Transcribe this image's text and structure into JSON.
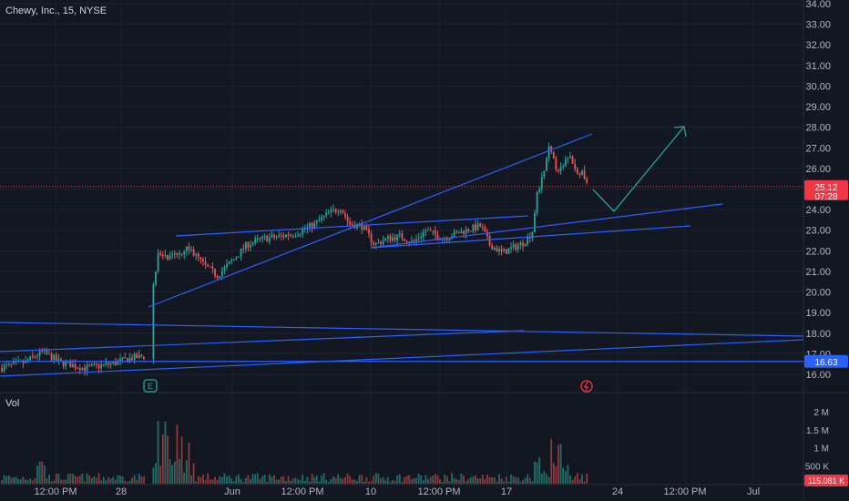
{
  "header": {
    "symbol_title": "Chewy, Inc., 15, NYSE"
  },
  "volume_pane": {
    "label": "Vol"
  },
  "colors": {
    "background": "#131722",
    "grid": "#1e222d",
    "axis_text": "#b2b5be",
    "candle_up": "#26a69a",
    "candle_down": "#ef5350",
    "trendline": "#2962ff",
    "projection_arrow": "#26a69a",
    "price_badge": "#f23645",
    "level_badge": "#2962ff",
    "volume_up": "#1f6e67",
    "volume_down": "#8e3a3a"
  },
  "price_axis": {
    "ticks": [
      "34.00",
      "33.00",
      "32.00",
      "31.00",
      "30.00",
      "29.00",
      "28.00",
      "27.00",
      "26.00",
      "25.00",
      "24.00",
      "23.00",
      "22.00",
      "21.00",
      "20.00",
      "19.00",
      "18.00",
      "17.00",
      "16.00"
    ],
    "current_price": "25.12",
    "countdown": "07:28",
    "level_label": "16.63"
  },
  "volume_axis": {
    "ticks": [
      "2 M",
      "1.5 M",
      "1 M",
      "500 K"
    ],
    "current_volume": "115.081 K"
  },
  "time_axis": {
    "labels": [
      "12:00 PM",
      "28",
      "Jun",
      "12:00 PM",
      "10",
      "12:00 PM",
      "17",
      "24",
      "12:00 PM",
      "Jul"
    ]
  },
  "markers": {
    "earnings": "E",
    "dividend_icon": "lightning-icon"
  },
  "chart_data": {
    "type": "candlestick",
    "symbol": "Chewy, Inc.",
    "interval": "15",
    "exchange": "NYSE",
    "ylim": [
      15.5,
      34.2
    ],
    "price_path": [
      [
        0,
        16.3
      ],
      [
        0.03,
        16.6
      ],
      [
        0.05,
        17.1
      ],
      [
        0.07,
        16.6
      ],
      [
        0.1,
        16.3
      ],
      [
        0.13,
        16.5
      ],
      [
        0.155,
        16.8
      ],
      [
        0.175,
        16.9
      ],
      [
        0.177,
        19.4
      ],
      [
        0.185,
        21.8
      ],
      [
        0.2,
        21.6
      ],
      [
        0.22,
        22.2
      ],
      [
        0.24,
        21.3
      ],
      [
        0.255,
        20.8
      ],
      [
        0.275,
        21.6
      ],
      [
        0.29,
        22.3
      ],
      [
        0.31,
        22.6
      ],
      [
        0.33,
        22.7
      ],
      [
        0.35,
        22.9
      ],
      [
        0.37,
        23.3
      ],
      [
        0.385,
        23.8
      ],
      [
        0.4,
        24.1
      ],
      [
        0.41,
        23.3
      ],
      [
        0.425,
        23.2
      ],
      [
        0.44,
        22.3
      ],
      [
        0.455,
        22.6
      ],
      [
        0.47,
        22.7
      ],
      [
        0.485,
        22.4
      ],
      [
        0.5,
        23.0
      ],
      [
        0.52,
        22.6
      ],
      [
        0.54,
        22.9
      ],
      [
        0.555,
        23.1
      ],
      [
        0.565,
        23.2
      ],
      [
        0.575,
        22.3
      ],
      [
        0.59,
        21.9
      ],
      [
        0.6,
        22.1
      ],
      [
        0.615,
        22.4
      ],
      [
        0.625,
        22.9
      ],
      [
        0.63,
        24.6
      ],
      [
        0.64,
        26.0
      ],
      [
        0.645,
        27.0
      ],
      [
        0.652,
        26.1
      ],
      [
        0.66,
        25.9
      ],
      [
        0.668,
        26.7
      ],
      [
        0.675,
        26.0
      ],
      [
        0.685,
        25.7
      ],
      [
        0.69,
        25.1
      ]
    ],
    "volume_ticks": [
      "500 K",
      "1 M",
      "1.5 M",
      "2 M"
    ],
    "annotations": {
      "current_price": 25.12,
      "horizontal_level": 16.63,
      "projection_arrow": [
        [
          24.9,
          25.3
        ],
        [
          24.0,
          27.4
        ],
        [
          28.0,
          27.9
        ]
      ]
    }
  }
}
